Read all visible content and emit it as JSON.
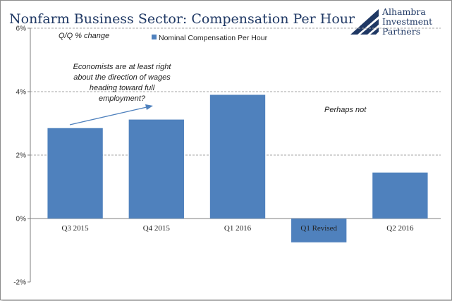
{
  "chart_data": {
    "type": "bar",
    "title": "Nonfarm Business Sector: Compensation Per Hour",
    "subtitle": "Q/Q % change",
    "categories": [
      "Q3 2015",
      "Q4 2015",
      "Q1 2016",
      "Q1 Revised",
      "Q2 2016"
    ],
    "series": [
      {
        "name": "Nominal Compensation Per Hour",
        "values": [
          2.85,
          3.12,
          3.9,
          -0.75,
          1.45
        ],
        "color": "#4f81bd"
      }
    ],
    "ylim": [
      -2,
      6
    ],
    "yticks": [
      -2,
      0,
      2,
      4,
      6
    ],
    "ytick_labels": [
      "-2%",
      "0%",
      "2%",
      "4%",
      "6%"
    ],
    "grid": true,
    "legend": "top-center",
    "annotations": [
      {
        "id": "economists",
        "lines": [
          "Economists are at least right",
          "about the direction of wages",
          "heading toward full",
          "employment?"
        ]
      },
      {
        "id": "perhaps",
        "lines": [
          "Perhaps not"
        ]
      }
    ]
  },
  "logo": {
    "lines": [
      "Alhambra",
      "Investment",
      "Partners"
    ],
    "color": "#1f3864"
  }
}
